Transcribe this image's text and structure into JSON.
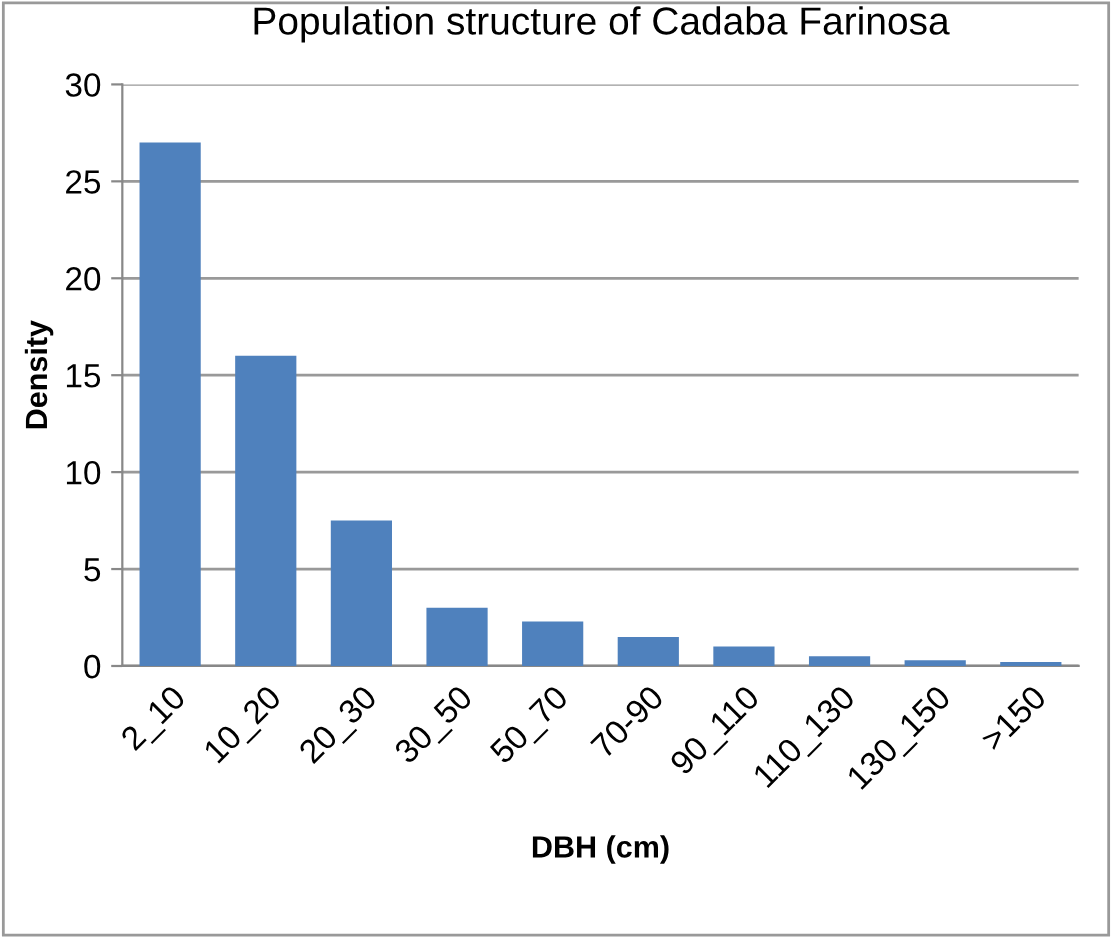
{
  "chart_data": {
    "type": "bar",
    "title": "Population structure of Cadaba Farinosa",
    "xlabel": "DBH (cm)",
    "ylabel": "Density",
    "categories": [
      "2_10",
      "10_20",
      "20_30",
      "30_50",
      "50_70",
      "70-90",
      "90_110",
      "110_130",
      "130_150",
      ">150"
    ],
    "values": [
      27,
      16,
      7.5,
      3,
      2.3,
      1.5,
      1,
      0.5,
      0.3,
      0.2
    ],
    "color": "#4f81bd",
    "ylim": [
      0,
      30
    ],
    "yticks": [
      0,
      5,
      10,
      15,
      20,
      25,
      30
    ],
    "grid": "y",
    "legend": false
  }
}
